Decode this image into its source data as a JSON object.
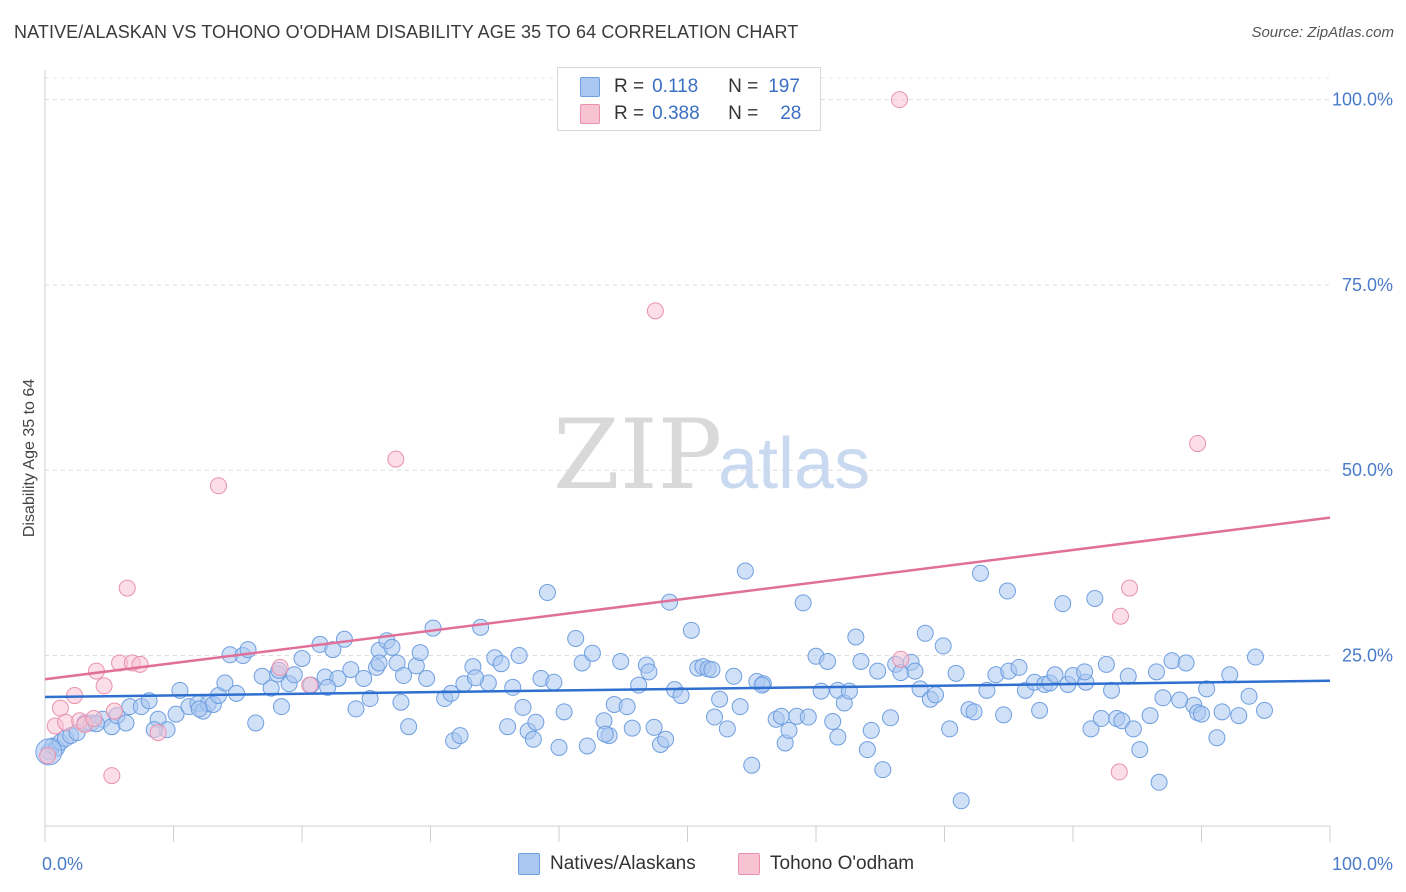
{
  "header": {
    "title": "NATIVE/ALASKAN VS TOHONO O'ODHAM DISABILITY AGE 35 TO 64 CORRELATION CHART",
    "source": "Source: ZipAtlas.com"
  },
  "watermark": {
    "zip": "ZIP",
    "atlas": "atlas"
  },
  "legend": {
    "rows": [
      {
        "r_label": "R =",
        "r_value": "0.118",
        "n_label": "N =",
        "n_value": "197",
        "color": "#a9c7f0",
        "border": "#6f9fe0"
      },
      {
        "r_label": "R =",
        "r_value": "0.388",
        "n_label": "N =",
        "n_value": "28",
        "color": "#f7c3d3",
        "border": "#e892ae"
      }
    ]
  },
  "bottom_legend": {
    "series1": "Natives/Alaskans",
    "series2": "Tohono O'odham"
  },
  "colors": {
    "blue_fill": "#a9c7f0",
    "blue_stroke": "#6f9fe0",
    "blue_line": "#2f6fd0",
    "pink_fill": "#f7c3d3",
    "pink_stroke": "#e892ae",
    "pink_line": "#e0709a",
    "tick_text": "#4a7bc8"
  },
  "chart_data": {
    "type": "scatter",
    "ylabel": "Disability Age 35 to 64",
    "xlim": [
      0,
      100
    ],
    "ylim": [
      2,
      104
    ],
    "x_tick_labels": [
      "0.0%",
      "100.0%"
    ],
    "y_ticks": [
      {
        "value": 25,
        "label": "25.0%"
      },
      {
        "value": 50,
        "label": "50.0%"
      },
      {
        "value": 75,
        "label": "75.0%"
      },
      {
        "value": 100,
        "label": "100.0%"
      }
    ],
    "grid": "horizontal dashed",
    "legend_placement": "top-center",
    "series": [
      {
        "name": "Natives/Alaskans",
        "trend": {
          "x0": 0,
          "y0": 19.4,
          "x1": 100,
          "y1": 21.6
        },
        "points": [
          [
            0.3,
            12
          ],
          [
            0.6,
            12.8
          ],
          [
            0.9,
            12.5
          ],
          [
            1.2,
            13.3
          ],
          [
            1.6,
            13.8
          ],
          [
            2.0,
            14.2
          ],
          [
            2.5,
            14.6
          ],
          [
            3.1,
            15.9
          ],
          [
            3.6,
            15.9
          ],
          [
            4.5,
            16.4
          ],
          [
            5.2,
            15.4
          ],
          [
            5.6,
            16.9
          ],
          [
            6.3,
            15.9
          ],
          [
            6.6,
            18.1
          ],
          [
            7.5,
            18.1
          ],
          [
            8.1,
            18.9
          ],
          [
            8.8,
            16.4
          ],
          [
            9.5,
            15.0
          ],
          [
            10.2,
            17.1
          ],
          [
            10.5,
            20.3
          ],
          [
            11.2,
            18.1
          ],
          [
            11.9,
            18.5
          ],
          [
            12.3,
            17.5
          ],
          [
            12.7,
            18.5
          ],
          [
            13.1,
            18.4
          ],
          [
            13.5,
            19.6
          ],
          [
            14.0,
            21.3
          ],
          [
            14.4,
            25.1
          ],
          [
            14.9,
            19.9
          ],
          [
            15.4,
            25.0
          ],
          [
            15.8,
            25.8
          ],
          [
            16.4,
            15.9
          ],
          [
            16.9,
            22.2
          ],
          [
            17.6,
            20.6
          ],
          [
            18.1,
            22.5
          ],
          [
            18.4,
            18.1
          ],
          [
            19.0,
            21.2
          ],
          [
            19.4,
            22.4
          ],
          [
            20.0,
            24.6
          ],
          [
            20.7,
            21.0
          ],
          [
            21.4,
            26.5
          ],
          [
            21.8,
            22.1
          ],
          [
            22.4,
            25.8
          ],
          [
            22.8,
            21.9
          ],
          [
            23.3,
            27.2
          ],
          [
            23.8,
            23.1
          ],
          [
            24.2,
            17.8
          ],
          [
            24.8,
            21.9
          ],
          [
            25.3,
            19.2
          ],
          [
            25.8,
            23.4
          ],
          [
            26.0,
            25.7
          ],
          [
            26.6,
            27.0
          ],
          [
            27.0,
            26.1
          ],
          [
            27.4,
            24.0
          ],
          [
            27.9,
            22.3
          ],
          [
            28.3,
            15.4
          ],
          [
            28.9,
            23.6
          ],
          [
            29.2,
            25.4
          ],
          [
            29.7,
            21.9
          ],
          [
            30.2,
            28.7
          ],
          [
            31.1,
            19.2
          ],
          [
            31.6,
            19.9
          ],
          [
            31.8,
            13.5
          ],
          [
            32.3,
            14.2
          ],
          [
            32.6,
            21.2
          ],
          [
            33.3,
            23.5
          ],
          [
            33.9,
            28.8
          ],
          [
            34.5,
            21.3
          ],
          [
            35.0,
            24.7
          ],
          [
            35.5,
            23.9
          ],
          [
            36.0,
            15.4
          ],
          [
            36.4,
            20.7
          ],
          [
            36.9,
            25.0
          ],
          [
            37.2,
            18.0
          ],
          [
            37.6,
            14.8
          ],
          [
            38.0,
            13.7
          ],
          [
            38.6,
            21.9
          ],
          [
            39.1,
            33.5
          ],
          [
            39.6,
            21.4
          ],
          [
            40.0,
            12.6
          ],
          [
            40.4,
            17.4
          ],
          [
            41.3,
            27.3
          ],
          [
            41.8,
            24.0
          ],
          [
            42.2,
            12.8
          ],
          [
            42.6,
            25.3
          ],
          [
            43.5,
            16.2
          ],
          [
            43.9,
            14.2
          ],
          [
            44.3,
            18.4
          ],
          [
            44.8,
            24.2
          ],
          [
            45.3,
            18.1
          ],
          [
            45.7,
            15.2
          ],
          [
            46.2,
            21.0
          ],
          [
            46.8,
            23.7
          ],
          [
            47.4,
            15.3
          ],
          [
            47.9,
            13.0
          ],
          [
            48.3,
            13.7
          ],
          [
            48.6,
            32.2
          ],
          [
            49.0,
            20.4
          ],
          [
            49.5,
            19.6
          ],
          [
            50.3,
            28.4
          ],
          [
            50.8,
            23.3
          ],
          [
            51.2,
            23.5
          ],
          [
            51.6,
            23.2
          ],
          [
            52.1,
            16.7
          ],
          [
            52.5,
            19.1
          ],
          [
            53.1,
            15.1
          ],
          [
            53.6,
            22.2
          ],
          [
            54.1,
            18.1
          ],
          [
            54.5,
            36.4
          ],
          [
            55.0,
            10.2
          ],
          [
            55.4,
            21.5
          ],
          [
            55.9,
            21.2
          ],
          [
            56.9,
            16.4
          ],
          [
            57.3,
            16.8
          ],
          [
            57.6,
            13.2
          ],
          [
            57.9,
            14.9
          ],
          [
            58.5,
            16.8
          ],
          [
            59.0,
            32.1
          ],
          [
            59.4,
            16.7
          ],
          [
            60.0,
            24.9
          ],
          [
            60.4,
            20.2
          ],
          [
            60.9,
            24.2
          ],
          [
            61.3,
            16.1
          ],
          [
            61.7,
            20.3
          ],
          [
            62.2,
            18.6
          ],
          [
            62.6,
            20.2
          ],
          [
            63.1,
            27.5
          ],
          [
            63.5,
            24.2
          ],
          [
            64.0,
            12.3
          ],
          [
            64.3,
            14.9
          ],
          [
            64.8,
            22.9
          ],
          [
            65.2,
            9.6
          ],
          [
            65.8,
            16.6
          ],
          [
            66.2,
            23.8
          ],
          [
            66.6,
            22.7
          ],
          [
            67.4,
            24.1
          ],
          [
            67.7,
            22.9
          ],
          [
            68.1,
            20.5
          ],
          [
            68.5,
            28.0
          ],
          [
            68.9,
            19.1
          ],
          [
            69.3,
            19.7
          ],
          [
            69.9,
            26.3
          ],
          [
            70.4,
            15.1
          ],
          [
            70.9,
            22.6
          ],
          [
            71.3,
            5.4
          ],
          [
            71.9,
            17.7
          ],
          [
            72.3,
            17.4
          ],
          [
            72.8,
            36.1
          ],
          [
            73.3,
            20.3
          ],
          [
            74.0,
            22.4
          ],
          [
            74.6,
            17.0
          ],
          [
            75.0,
            22.9
          ],
          [
            75.8,
            23.4
          ],
          [
            76.3,
            20.3
          ],
          [
            77.0,
            21.4
          ],
          [
            77.4,
            17.6
          ],
          [
            77.8,
            21.1
          ],
          [
            78.2,
            21.3
          ],
          [
            78.6,
            22.4
          ],
          [
            79.2,
            32.0
          ],
          [
            79.6,
            21.1
          ],
          [
            80.0,
            22.3
          ],
          [
            81.0,
            21.4
          ],
          [
            81.4,
            15.1
          ],
          [
            81.7,
            32.7
          ],
          [
            82.2,
            16.5
          ],
          [
            82.6,
            23.8
          ],
          [
            83.0,
            20.3
          ],
          [
            83.4,
            16.5
          ],
          [
            83.8,
            16.2
          ],
          [
            84.3,
            22.2
          ],
          [
            84.7,
            15.1
          ],
          [
            85.2,
            12.3
          ],
          [
            86.0,
            16.9
          ],
          [
            86.5,
            22.8
          ],
          [
            87.0,
            19.3
          ],
          [
            87.7,
            24.3
          ],
          [
            88.3,
            19.0
          ],
          [
            88.8,
            24.0
          ],
          [
            89.4,
            18.3
          ],
          [
            89.7,
            17.3
          ],
          [
            90.0,
            17.1
          ],
          [
            90.4,
            20.5
          ],
          [
            91.2,
            13.9
          ],
          [
            91.6,
            17.4
          ],
          [
            92.2,
            22.4
          ],
          [
            92.9,
            16.9
          ],
          [
            93.7,
            19.5
          ],
          [
            94.2,
            24.8
          ],
          [
            94.9,
            17.6
          ],
          [
            61.7,
            14.0
          ],
          [
            43.6,
            14.4
          ],
          [
            38.2,
            16.0
          ],
          [
            33.5,
            22.0
          ],
          [
            27.7,
            18.7
          ],
          [
            22.0,
            20.7
          ],
          [
            18.2,
            23.0
          ],
          [
            12.0,
            17.8
          ],
          [
            8.5,
            15.0
          ],
          [
            4.0,
            15.8
          ],
          [
            86.7,
            7.9
          ],
          [
            55.8,
            21.0
          ],
          [
            47.0,
            22.8
          ],
          [
            26.0,
            24.0
          ],
          [
            51.9,
            23.1
          ],
          [
            74.9,
            33.7
          ],
          [
            80.9,
            22.8
          ]
        ]
      },
      {
        "name": "Tohono O'odham",
        "trend": {
          "x0": 0,
          "y0": 21.8,
          "x1": 100,
          "y1": 43.6
        },
        "points": [
          [
            0.2,
            11.5
          ],
          [
            0.8,
            15.5
          ],
          [
            1.2,
            17.9
          ],
          [
            1.6,
            16.0
          ],
          [
            2.3,
            19.6
          ],
          [
            2.7,
            16.2
          ],
          [
            3.1,
            15.7
          ],
          [
            3.8,
            16.5
          ],
          [
            4.0,
            22.9
          ],
          [
            4.6,
            20.9
          ],
          [
            5.4,
            17.5
          ],
          [
            5.2,
            8.8
          ],
          [
            5.8,
            24.0
          ],
          [
            6.4,
            34.1
          ],
          [
            6.8,
            24.0
          ],
          [
            7.4,
            23.8
          ],
          [
            8.8,
            14.6
          ],
          [
            13.5,
            47.9
          ],
          [
            18.3,
            23.4
          ],
          [
            20.6,
            21.0
          ],
          [
            27.3,
            51.5
          ],
          [
            47.5,
            71.5
          ],
          [
            66.5,
            100.0
          ],
          [
            66.6,
            24.5
          ],
          [
            83.7,
            30.3
          ],
          [
            84.4,
            34.1
          ],
          [
            89.7,
            53.6
          ],
          [
            83.6,
            9.3
          ]
        ]
      }
    ]
  }
}
